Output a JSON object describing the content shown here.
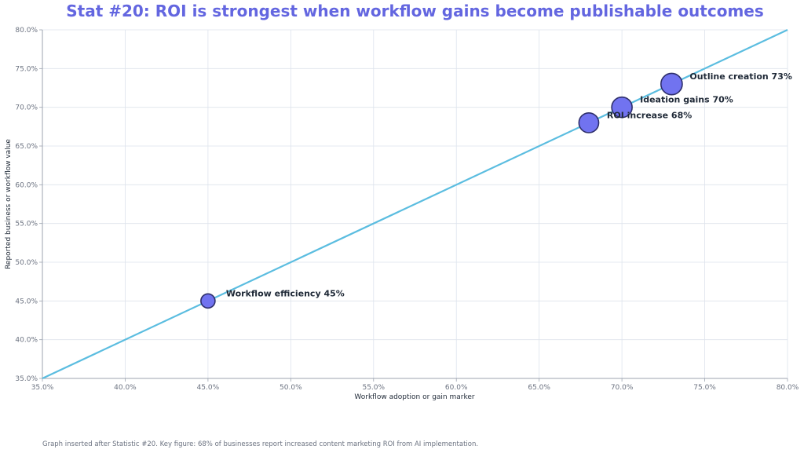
{
  "chart_data": {
    "type": "scatter",
    "title": "Stat #20: ROI is strongest when workflow gains become publishable outcomes",
    "xlabel": "Workflow adoption or gain marker",
    "ylabel": "Reported business or workflow value",
    "xlim": [
      35,
      80
    ],
    "ylim": [
      35,
      80
    ],
    "x_ticks": [
      "35.0%",
      "40.0%",
      "45.0%",
      "50.0%",
      "55.0%",
      "60.0%",
      "65.0%",
      "70.0%",
      "75.0%",
      "80.0%"
    ],
    "y_ticks": [
      "35.0%",
      "40.0%",
      "45.0%",
      "50.0%",
      "55.0%",
      "60.0%",
      "65.0%",
      "70.0%",
      "75.0%",
      "80.0%"
    ],
    "grid": true,
    "reference_line": {
      "from": [
        35,
        35
      ],
      "to": [
        80,
        80
      ]
    },
    "points": [
      {
        "x": 45,
        "y": 45,
        "label": "Workflow efficiency 45%"
      },
      {
        "x": 68,
        "y": 68,
        "label": "ROI increase 68%"
      },
      {
        "x": 70,
        "y": 70,
        "label": "Ideation gains 70%"
      },
      {
        "x": 73,
        "y": 73,
        "label": "Outline creation 73%"
      }
    ],
    "colors": {
      "title": "#6366e0",
      "line": "#5bbde0",
      "marker_fill": "#7173f0",
      "marker_edge": "#2e2f6b",
      "grid": "#dde3ec"
    }
  },
  "footnote": "Graph inserted after Statistic #20. Key figure: 68% of businesses report increased content marketing ROI from AI implementation."
}
